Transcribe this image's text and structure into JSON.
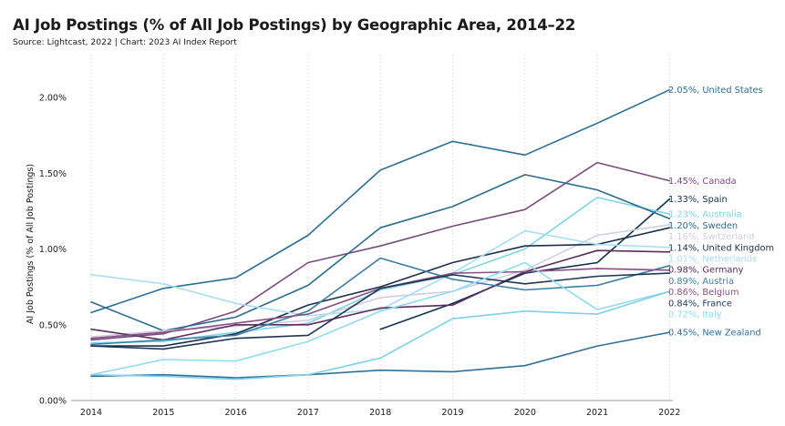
{
  "chart_data": {
    "type": "line",
    "title": "AI Job Postings (% of All Job Postings) by Geographic Area, 2014–22",
    "subtitle": "Source: Lightcast, 2022 | Chart: 2023 AI Index Report",
    "ylabel": "AI Job Postings (% of All Job Postings)",
    "xlabel": "",
    "x": [
      2014,
      2015,
      2016,
      2017,
      2018,
      2019,
      2020,
      2021,
      2022
    ],
    "ylim": [
      0,
      2.2
    ],
    "yticks": [
      0,
      0.5,
      1.0,
      1.5,
      2.0
    ],
    "ytick_labels": [
      "0.00%",
      "0.50%",
      "1.00%",
      "1.50%",
      "2.00%"
    ],
    "grid": "vertical-dotted",
    "series": [
      {
        "name": "United States",
        "end_label": "2.05%, United States",
        "color": "#2a6f97",
        "values": [
          0.58,
          0.74,
          0.81,
          1.09,
          1.52,
          1.71,
          1.62,
          1.83,
          2.05
        ]
      },
      {
        "name": "Canada",
        "end_label": "1.45%, Canada",
        "color": "#7b4b7d",
        "values": [
          0.4,
          0.44,
          0.59,
          0.91,
          1.02,
          1.15,
          1.26,
          1.57,
          1.45
        ]
      },
      {
        "name": "Spain",
        "end_label": "1.33%, Spain",
        "color": "#13324e",
        "values": [
          null,
          null,
          null,
          null,
          0.47,
          0.64,
          0.84,
          0.91,
          1.33
        ]
      },
      {
        "name": "Australia",
        "end_label": "1.23%, Australia",
        "color": "#7fd4ea",
        "values": [
          0.38,
          0.39,
          0.45,
          0.51,
          0.73,
          0.83,
          1.0,
          1.34,
          1.23
        ]
      },
      {
        "name": "Sweden",
        "end_label": "1.20%, Sweden",
        "color": "#2b6c8f",
        "values": [
          0.65,
          0.46,
          0.55,
          0.76,
          1.14,
          1.28,
          1.49,
          1.39,
          1.2
        ]
      },
      {
        "name": "Switzerland",
        "end_label": "1.16%, Switzerland",
        "color": "#cfcfe3",
        "values": [
          0.42,
          0.46,
          0.49,
          0.53,
          0.68,
          0.72,
          0.86,
          1.09,
          1.16
        ]
      },
      {
        "name": "United Kingdom",
        "end_label": "1.14%, United Kingdom",
        "color": "#1c2f4c",
        "values": [
          0.36,
          0.36,
          0.44,
          0.63,
          0.75,
          0.91,
          1.02,
          1.03,
          1.14
        ]
      },
      {
        "name": "Netherlands",
        "end_label": "1.01%, Netherlands",
        "color": "#a9dff0",
        "values": [
          0.83,
          0.77,
          0.64,
          0.56,
          0.6,
          0.84,
          1.12,
          1.03,
          1.01
        ]
      },
      {
        "name": "Germany",
        "end_label": "0.98%, Germany",
        "color": "#5b2d5c",
        "values": [
          0.47,
          0.4,
          0.5,
          0.5,
          0.61,
          0.63,
          0.85,
          0.99,
          0.98
        ]
      },
      {
        "name": "Austria",
        "end_label": "0.89%, Austria",
        "color": "#3a7ea6",
        "values": [
          0.37,
          0.4,
          0.43,
          0.59,
          0.94,
          0.8,
          0.73,
          0.76,
          0.89
        ]
      },
      {
        "name": "Belgium",
        "end_label": "0.86%, Belgium",
        "color": "#8a4f84",
        "values": [
          0.41,
          0.45,
          0.51,
          0.57,
          0.74,
          0.84,
          0.85,
          0.87,
          0.86
        ]
      },
      {
        "name": "France",
        "end_label": "0.84%, France",
        "color": "#1f3656",
        "values": [
          0.36,
          0.34,
          0.41,
          0.43,
          0.74,
          0.83,
          0.77,
          0.82,
          0.84
        ]
      },
      {
        "name": "Italy",
        "end_label": "0.72%, Italy",
        "color": "#8fdcf0",
        "values": [
          0.17,
          0.27,
          0.26,
          0.39,
          0.59,
          0.72,
          0.91,
          0.6,
          0.72
        ]
      },
      {
        "name": "New Zealand",
        "end_label": "0.45%, New Zealand",
        "color": "#2f6f99",
        "values": [
          0.16,
          0.17,
          0.15,
          0.17,
          0.2,
          0.19,
          0.23,
          0.36,
          0.45
        ]
      },
      {
        "name": "",
        "end_label": "",
        "color": "#7fd0e8",
        "values": [
          0.17,
          0.16,
          0.14,
          0.17,
          0.28,
          0.54,
          0.59,
          0.57,
          0.72
        ]
      }
    ]
  }
}
